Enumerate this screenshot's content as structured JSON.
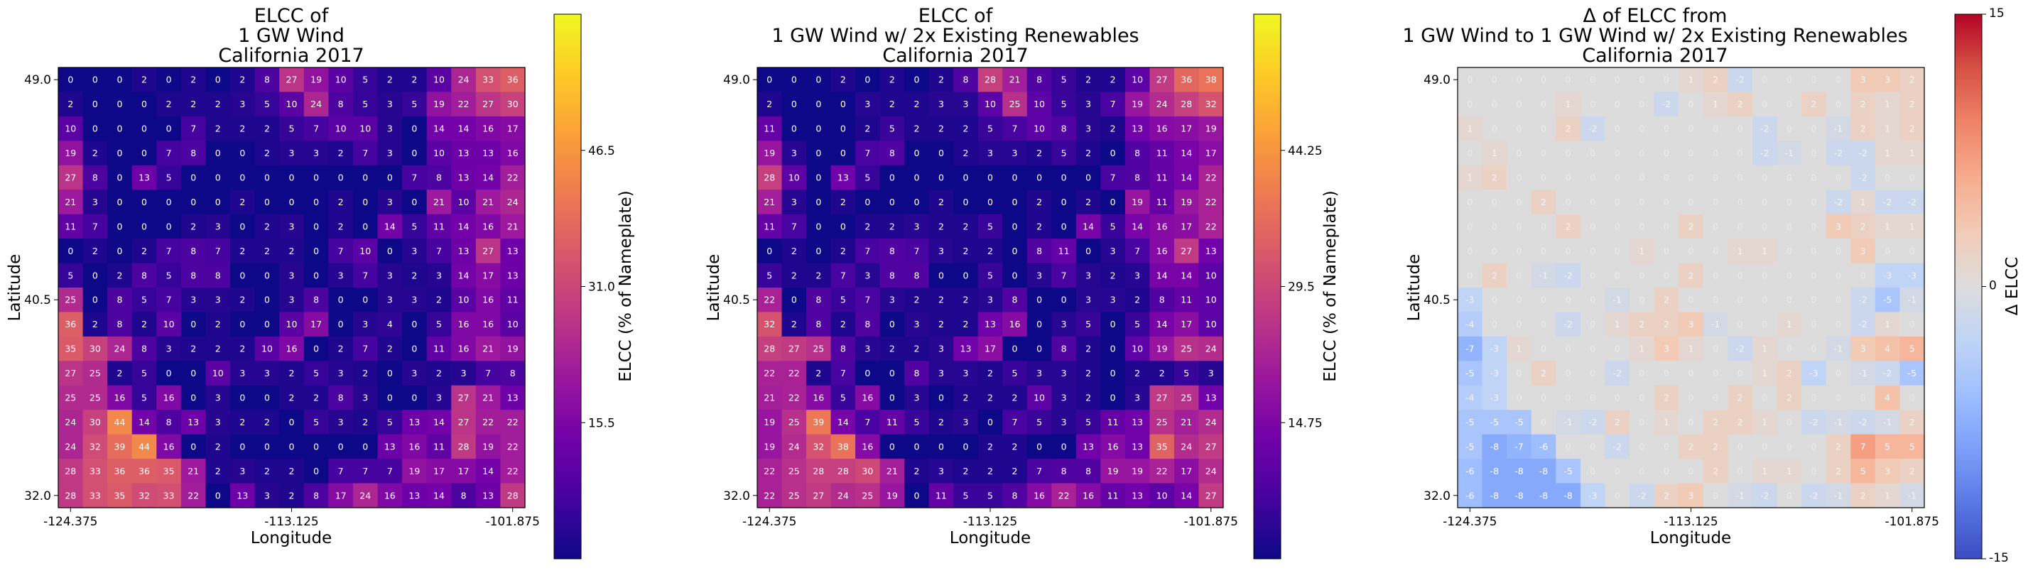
{
  "panels": [
    {
      "id": "wind",
      "title_lines": [
        "ELCC of",
        "1 GW Wind",
        "California 2017"
      ],
      "xlabel": "Longitude",
      "ylabel": "Latitude",
      "xticks": [
        "-124.375",
        "-113.125",
        "-101.875"
      ],
      "yticks": [
        "49.0",
        "40.5",
        "32.0"
      ],
      "colorbar_label": "ELCC (% of Nameplate)",
      "colorbar_ticks": [
        "15.5",
        "31.0",
        "46.5"
      ],
      "colormap": "plasma",
      "vmin": 0,
      "vmax": 62
    },
    {
      "id": "wind_2x",
      "title_lines": [
        "ELCC of",
        "1 GW Wind w/ 2x Existing Renewables",
        "California 2017"
      ],
      "xlabel": "Longitude",
      "ylabel": "Latitude",
      "xticks": [
        "-124.375",
        "-113.125",
        "-101.875"
      ],
      "yticks": [
        "49.0",
        "40.5",
        "32.0"
      ],
      "colorbar_label": "ELCC (% of Nameplate)",
      "colorbar_ticks": [
        "14.75",
        "29.5",
        "44.25"
      ],
      "colormap": "plasma",
      "vmin": 0,
      "vmax": 59
    },
    {
      "id": "delta",
      "title_lines": [
        "Δ of ELCC from",
        "1 GW Wind to 1 GW Wind w/ 2x Existing Renewables",
        "California 2017"
      ],
      "xlabel": "Longitude",
      "ylabel": "Latitude",
      "xticks": [
        "-124.375",
        "-113.125",
        "-101.875"
      ],
      "yticks": [
        "49.0",
        "40.5",
        "32.0"
      ],
      "colorbar_label": "Δ ELCC",
      "colorbar_ticks": [
        "-15",
        "0",
        "15"
      ],
      "colormap": "coolwarm",
      "vmin": -15,
      "vmax": 15
    }
  ],
  "chart_data": [
    {
      "type": "heatmap",
      "title": "ELCC of 1 GW Wind California 2017",
      "xlabel": "Longitude",
      "ylabel": "Latitude",
      "x_range": [
        -124.375,
        -101.875
      ],
      "y_range": [
        32.0,
        49.0
      ],
      "rows_top_to_bottom": [
        [
          0,
          0,
          0,
          2,
          0,
          2,
          0,
          2,
          8,
          27,
          19,
          10,
          5,
          2,
          2,
          10,
          24,
          33,
          36
        ],
        [
          2,
          0,
          0,
          0,
          2,
          2,
          2,
          3,
          5,
          10,
          24,
          8,
          5,
          3,
          5,
          19,
          22,
          27,
          30
        ],
        [
          10,
          0,
          0,
          0,
          0,
          7,
          2,
          2,
          2,
          5,
          7,
          10,
          10,
          3,
          0,
          14,
          14,
          16,
          17
        ],
        [
          19,
          2,
          0,
          0,
          7,
          8,
          0,
          0,
          2,
          3,
          3,
          2,
          7,
          3,
          0,
          10,
          13,
          13,
          16
        ],
        [
          27,
          8,
          0,
          13,
          5,
          0,
          0,
          0,
          0,
          0,
          0,
          0,
          0,
          0,
          7,
          8,
          13,
          14,
          22
        ],
        [
          21,
          3,
          0,
          0,
          0,
          0,
          0,
          2,
          0,
          0,
          0,
          2,
          0,
          3,
          0,
          21,
          10,
          21,
          24
        ],
        [
          11,
          7,
          0,
          0,
          0,
          2,
          3,
          0,
          2,
          3,
          0,
          2,
          0,
          14,
          5,
          11,
          14,
          16,
          21
        ],
        [
          0,
          2,
          0,
          2,
          7,
          8,
          7,
          2,
          2,
          2,
          0,
          7,
          10,
          0,
          3,
          7,
          13,
          27,
          13
        ],
        [
          5,
          0,
          2,
          8,
          5,
          8,
          8,
          0,
          0,
          3,
          0,
          3,
          7,
          3,
          2,
          3,
          14,
          17,
          13
        ],
        [
          25,
          0,
          8,
          5,
          7,
          3,
          3,
          2,
          0,
          3,
          8,
          0,
          0,
          3,
          3,
          2,
          10,
          16,
          11
        ],
        [
          36,
          2,
          8,
          2,
          10,
          0,
          2,
          0,
          0,
          10,
          17,
          0,
          3,
          4,
          0,
          5,
          16,
          16,
          10
        ],
        [
          35,
          30,
          24,
          8,
          3,
          2,
          2,
          2,
          10,
          16,
          0,
          2,
          7,
          2,
          0,
          11,
          16,
          21,
          19
        ],
        [
          27,
          25,
          2,
          5,
          0,
          0,
          10,
          3,
          3,
          2,
          5,
          3,
          2,
          0,
          3,
          2,
          3,
          7,
          8
        ],
        [
          25,
          25,
          16,
          5,
          16,
          0,
          3,
          0,
          0,
          2,
          2,
          8,
          3,
          0,
          0,
          3,
          27,
          21,
          13
        ],
        [
          24,
          30,
          44,
          14,
          8,
          13,
          3,
          2,
          2,
          0,
          5,
          3,
          2,
          5,
          13,
          14,
          27,
          22,
          22
        ],
        [
          24,
          32,
          39,
          44,
          16,
          0,
          2,
          0,
          0,
          0,
          0,
          0,
          0,
          13,
          16,
          11,
          28,
          19,
          22
        ],
        [
          28,
          33,
          36,
          36,
          35,
          21,
          2,
          3,
          2,
          2,
          0,
          7,
          7,
          7,
          19,
          17,
          17,
          14,
          22
        ],
        [
          28,
          33,
          35,
          32,
          33,
          22,
          0,
          13,
          3,
          2,
          8,
          17,
          24,
          16,
          13,
          14,
          8,
          13,
          28
        ]
      ]
    },
    {
      "type": "heatmap",
      "title": "ELCC of 1 GW Wind w/ 2x Existing Renewables California 2017",
      "xlabel": "Longitude",
      "ylabel": "Latitude",
      "x_range": [
        -124.375,
        -101.875
      ],
      "y_range": [
        32.0,
        49.0
      ],
      "rows_top_to_bottom": [
        [
          0,
          0,
          0,
          2,
          0,
          2,
          0,
          2,
          8,
          28,
          21,
          8,
          5,
          2,
          2,
          10,
          27,
          36,
          38
        ],
        [
          2,
          0,
          0,
          0,
          3,
          2,
          2,
          3,
          3,
          10,
          25,
          10,
          5,
          3,
          7,
          19,
          24,
          28,
          32
        ],
        [
          11,
          0,
          0,
          0,
          2,
          5,
          2,
          2,
          2,
          5,
          7,
          10,
          8,
          3,
          2,
          13,
          16,
          17,
          19
        ],
        [
          19,
          3,
          0,
          0,
          7,
          8,
          0,
          0,
          2,
          3,
          3,
          2,
          5,
          2,
          0,
          8,
          11,
          14,
          17
        ],
        [
          28,
          10,
          0,
          13,
          5,
          0,
          0,
          0,
          0,
          0,
          0,
          0,
          0,
          0,
          7,
          8,
          11,
          14,
          22
        ],
        [
          21,
          3,
          0,
          2,
          0,
          0,
          0,
          2,
          0,
          0,
          0,
          2,
          0,
          2,
          0,
          19,
          11,
          19,
          22
        ],
        [
          11,
          7,
          0,
          0,
          2,
          2,
          3,
          2,
          2,
          5,
          0,
          2,
          0,
          14,
          5,
          14,
          16,
          17,
          22
        ],
        [
          0,
          2,
          0,
          2,
          7,
          8,
          7,
          3,
          2,
          2,
          0,
          8,
          11,
          0,
          3,
          7,
          16,
          27,
          13
        ],
        [
          5,
          2,
          2,
          7,
          3,
          8,
          8,
          0,
          0,
          5,
          0,
          3,
          7,
          3,
          2,
          3,
          14,
          14,
          10
        ],
        [
          22,
          0,
          8,
          5,
          7,
          3,
          2,
          2,
          2,
          3,
          8,
          0,
          0,
          3,
          3,
          2,
          8,
          11,
          10
        ],
        [
          32,
          2,
          8,
          2,
          8,
          0,
          3,
          2,
          2,
          13,
          16,
          0,
          3,
          5,
          0,
          5,
          14,
          17,
          10
        ],
        [
          28,
          27,
          25,
          8,
          3,
          2,
          2,
          3,
          13,
          17,
          0,
          0,
          8,
          2,
          0,
          10,
          19,
          25,
          24
        ],
        [
          22,
          22,
          2,
          7,
          0,
          0,
          8,
          3,
          3,
          2,
          5,
          3,
          3,
          2,
          0,
          2,
          2,
          5,
          3
        ],
        [
          21,
          22,
          16,
          5,
          16,
          0,
          3,
          0,
          2,
          2,
          2,
          10,
          3,
          2,
          0,
          3,
          27,
          25,
          13
        ],
        [
          19,
          25,
          39,
          14,
          7,
          11,
          5,
          2,
          3,
          0,
          7,
          5,
          3,
          5,
          11,
          13,
          25,
          21,
          24
        ],
        [
          19,
          24,
          32,
          38,
          16,
          0,
          0,
          0,
          0,
          2,
          2,
          0,
          0,
          13,
          16,
          13,
          35,
          24,
          27
        ],
        [
          22,
          25,
          28,
          28,
          30,
          21,
          2,
          3,
          2,
          2,
          2,
          7,
          8,
          8,
          19,
          19,
          22,
          17,
          24
        ],
        [
          22,
          25,
          27,
          24,
          25,
          19,
          0,
          11,
          5,
          5,
          8,
          16,
          22,
          16,
          11,
          13,
          10,
          14,
          27
        ]
      ]
    },
    {
      "type": "heatmap",
      "title": "Δ of ELCC from 1 GW Wind to 1 GW Wind w/ 2x Existing Renewables California 2017",
      "xlabel": "Longitude",
      "ylabel": "Latitude",
      "x_range": [
        -124.375,
        -101.875
      ],
      "y_range": [
        32.0,
        49.0
      ],
      "rows_top_to_bottom": [
        [
          0,
          0,
          0,
          0,
          0,
          0,
          0,
          0,
          0,
          1,
          2,
          -2,
          0,
          0,
          0,
          0,
          3,
          3,
          2
        ],
        [
          0,
          0,
          0,
          0,
          1,
          0,
          0,
          0,
          -2,
          0,
          1,
          2,
          0,
          0,
          2,
          0,
          2,
          1,
          2
        ],
        [
          1,
          0,
          0,
          0,
          2,
          -2,
          0,
          0,
          0,
          0,
          0,
          0,
          -2,
          0,
          0,
          -1,
          2,
          1,
          2
        ],
        [
          0,
          1,
          0,
          0,
          0,
          0,
          0,
          0,
          0,
          0,
          0,
          0,
          -2,
          -1,
          0,
          -2,
          -2,
          1,
          1
        ],
        [
          1,
          2,
          0,
          0,
          0,
          0,
          0,
          0,
          0,
          0,
          0,
          0,
          0,
          0,
          0,
          0,
          -2,
          0,
          0
        ],
        [
          0,
          0,
          0,
          2,
          0,
          0,
          0,
          0,
          0,
          0,
          0,
          0,
          0,
          0,
          0,
          -2,
          1,
          -2,
          -2
        ],
        [
          0,
          0,
          0,
          0,
          2,
          0,
          0,
          0,
          0,
          2,
          0,
          0,
          0,
          0,
          0,
          3,
          2,
          1,
          1
        ],
        [
          0,
          0,
          0,
          0,
          0,
          0,
          0,
          1,
          0,
          0,
          0,
          1,
          1,
          0,
          0,
          0,
          3,
          0,
          0
        ],
        [
          0,
          2,
          0,
          -1,
          -2,
          0,
          0,
          0,
          0,
          2,
          0,
          0,
          0,
          0,
          0,
          0,
          0,
          -3,
          -3
        ],
        [
          -3,
          0,
          0,
          0,
          0,
          0,
          -1,
          0,
          2,
          0,
          0,
          0,
          0,
          0,
          0,
          0,
          -2,
          -5,
          -1
        ],
        [
          -4,
          0,
          0,
          0,
          -2,
          0,
          1,
          2,
          2,
          3,
          -1,
          0,
          0,
          1,
          0,
          0,
          -2,
          1,
          0
        ],
        [
          -7,
          -3,
          1,
          0,
          0,
          0,
          0,
          1,
          3,
          1,
          0,
          -2,
          1,
          0,
          0,
          -1,
          3,
          4,
          5
        ],
        [
          -5,
          -3,
          0,
          2,
          0,
          0,
          -2,
          0,
          0,
          0,
          0,
          0,
          1,
          2,
          -3,
          0,
          -1,
          -2,
          -5
        ],
        [
          -4,
          -3,
          0,
          0,
          0,
          0,
          0,
          0,
          2,
          0,
          0,
          2,
          0,
          2,
          0,
          0,
          0,
          4,
          0
        ],
        [
          -5,
          -5,
          -5,
          0,
          -1,
          -2,
          2,
          0,
          1,
          0,
          2,
          2,
          1,
          0,
          -2,
          -1,
          -2,
          -1,
          2
        ],
        [
          -5,
          -8,
          -7,
          -6,
          0,
          0,
          -2,
          0,
          0,
          2,
          2,
          0,
          0,
          0,
          0,
          2,
          7,
          5,
          5
        ],
        [
          -6,
          -8,
          -8,
          -8,
          -5,
          0,
          0,
          0,
          0,
          0,
          2,
          0,
          1,
          1,
          0,
          2,
          5,
          3,
          2
        ],
        [
          -6,
          -8,
          -8,
          -8,
          -8,
          -3,
          0,
          -2,
          2,
          3,
          0,
          -1,
          -2,
          0,
          -2,
          -1,
          2,
          1,
          -1
        ]
      ]
    }
  ]
}
